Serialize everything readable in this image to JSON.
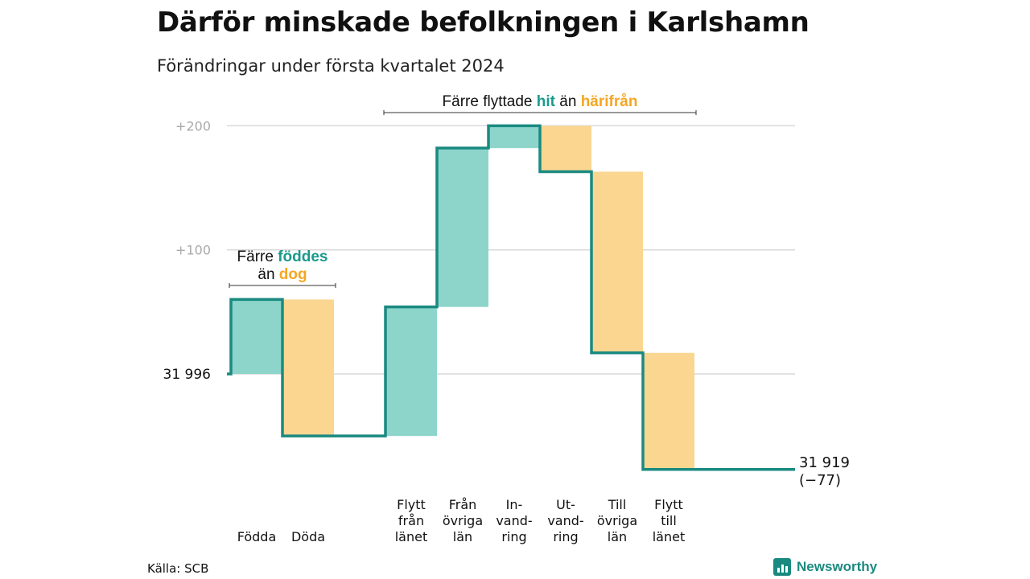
{
  "title": "Därför minskade befolkningen i Karlshamn",
  "subtitle": "Förändringar under första kvartalet 2024",
  "source": "Källa: SCB",
  "brand": "Newsworthy",
  "colors": {
    "increase_fill": "#8dd5cb",
    "decrease_fill": "#fad690",
    "step_line": "#1a8a80",
    "teal_text": "#1a9a8c",
    "orange_text": "#f5a623",
    "grid": "#d9d9d9",
    "tick_text": "#aaaaaa"
  },
  "chart_data": {
    "type": "waterfall",
    "start_value": 31996,
    "start_label": "31  996",
    "end_value": 31919,
    "end_label": "31 919",
    "end_change_label": "(−77)",
    "y_ticks": [
      {
        "value": 100,
        "label": "+100"
      },
      {
        "value": 200,
        "label": "+200"
      }
    ],
    "ylim": [
      -85,
      205
    ],
    "steps": [
      {
        "label": [
          "Födda"
        ],
        "value": 60,
        "kind": "increase",
        "slot": 0
      },
      {
        "label": [
          "Döda"
        ],
        "value": -110,
        "kind": "decrease",
        "slot": 1
      },
      {
        "label": [
          "Flytt",
          "från",
          "länet"
        ],
        "value": 104,
        "kind": "increase",
        "slot": 3
      },
      {
        "label": [
          "Från",
          "övriga",
          "län"
        ],
        "value": 128,
        "kind": "increase",
        "slot": 4
      },
      {
        "label": [
          "In-",
          "vand-",
          "ring"
        ],
        "value": 18,
        "kind": "increase",
        "slot": 5
      },
      {
        "label": [
          "Ut-",
          "vand-",
          "ring"
        ],
        "value": -37,
        "kind": "decrease",
        "slot": 6
      },
      {
        "label": [
          "Till",
          "övriga",
          "län"
        ],
        "value": -146,
        "kind": "decrease",
        "slot": 7
      },
      {
        "label": [
          "Flytt",
          "till",
          "länet"
        ],
        "value": -94,
        "kind": "decrease",
        "slot": 8
      }
    ],
    "annotations": [
      {
        "lines": [
          [
            {
              "text": "Färre ",
              "style": "plain"
            },
            {
              "text": "föddes",
              "style": "teal"
            }
          ],
          [
            {
              "text": "än ",
              "style": "plain"
            },
            {
              "text": "dog",
              "style": "orange"
            }
          ]
        ],
        "spans_slots": [
          0,
          1
        ]
      },
      {
        "lines": [
          [
            {
              "text": "Färre flyttade ",
              "style": "plain"
            },
            {
              "text": "hit",
              "style": "teal"
            },
            {
              "text": " än ",
              "style": "plain"
            },
            {
              "text": "härifrån",
              "style": "orange"
            }
          ]
        ],
        "spans_slots": [
          3,
          8
        ]
      }
    ]
  }
}
